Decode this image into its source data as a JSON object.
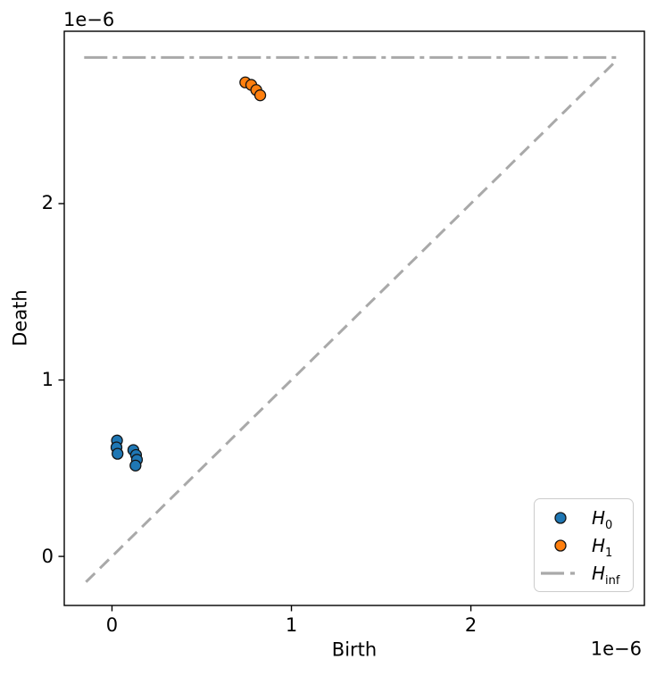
{
  "chart_data": {
    "type": "scatter",
    "title": "",
    "xlabel": "Birth",
    "ylabel": "Death",
    "x_offset_label": "1e−6",
    "y_offset_label": "1e−6",
    "units_multiplier": "1e-6",
    "xlim": [
      -0.266,
      2.967
    ],
    "ylim": [
      -0.278,
      2.977
    ],
    "xticks": [
      0,
      1,
      2
    ],
    "yticks": [
      0,
      1,
      2
    ],
    "grid": false,
    "legend_position": "lower right",
    "series": [
      {
        "name": "H0",
        "color": "#1f77b4",
        "marker": "circle",
        "points": [
          [
            0.028,
            0.657
          ],
          [
            0.025,
            0.618
          ],
          [
            0.031,
            0.582
          ],
          [
            0.119,
            0.603
          ],
          [
            0.134,
            0.575
          ],
          [
            0.139,
            0.548
          ],
          [
            0.131,
            0.515
          ]
        ]
      },
      {
        "name": "H1",
        "color": "#ff7f0e",
        "marker": "circle",
        "points": [
          [
            0.743,
            2.687
          ],
          [
            0.776,
            2.673
          ],
          [
            0.804,
            2.644
          ],
          [
            0.826,
            2.614
          ]
        ]
      }
    ],
    "infinity_line": {
      "name": "Hinf",
      "y": 2.828,
      "x_from": -0.155,
      "x_to": 2.818,
      "color": "#a9a9a9",
      "style": "dashdot"
    },
    "diagonal": {
      "from": -0.145,
      "to": 2.818,
      "color": "#a9a9a9",
      "style": "dashed"
    },
    "marker_edge_color": "#141414"
  },
  "legend": {
    "items": [
      {
        "main": "H",
        "sub": "0"
      },
      {
        "main": "H",
        "sub": "1"
      },
      {
        "main": "H",
        "sub": "inf"
      }
    ]
  }
}
